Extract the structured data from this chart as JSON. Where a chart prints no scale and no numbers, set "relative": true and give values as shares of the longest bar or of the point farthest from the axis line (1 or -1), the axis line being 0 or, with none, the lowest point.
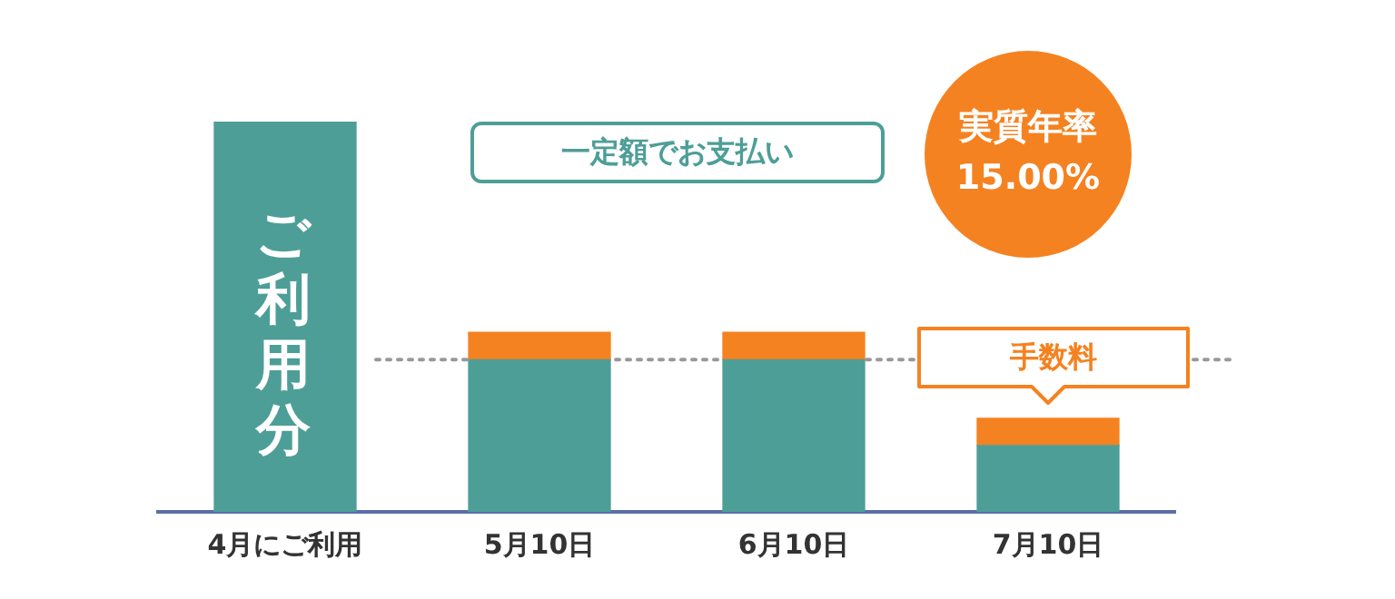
{
  "chart_data": {
    "type": "bar",
    "relative": true,
    "stacked": true,
    "categories": [
      "4月にご利用",
      "5月10日",
      "6月10日",
      "7月10日"
    ],
    "series": [
      {
        "color": "#4e9e98",
        "values": [
          1,
          0.39,
          0.39,
          0.17
        ]
      },
      {
        "color": "#f58220",
        "values": [
          0,
          0.07,
          0.07,
          0.07
        ]
      }
    ],
    "ref_lines": [
      {
        "axis": "y",
        "value": 0.39,
        "color": "#999999",
        "line_style": "dotted"
      }
    ],
    "annotations": [
      "ご利用分",
      "一定額でお支払い",
      "実質年率 15.00%",
      "手数料"
    ],
    "legend": false,
    "grid": false
  }
}
